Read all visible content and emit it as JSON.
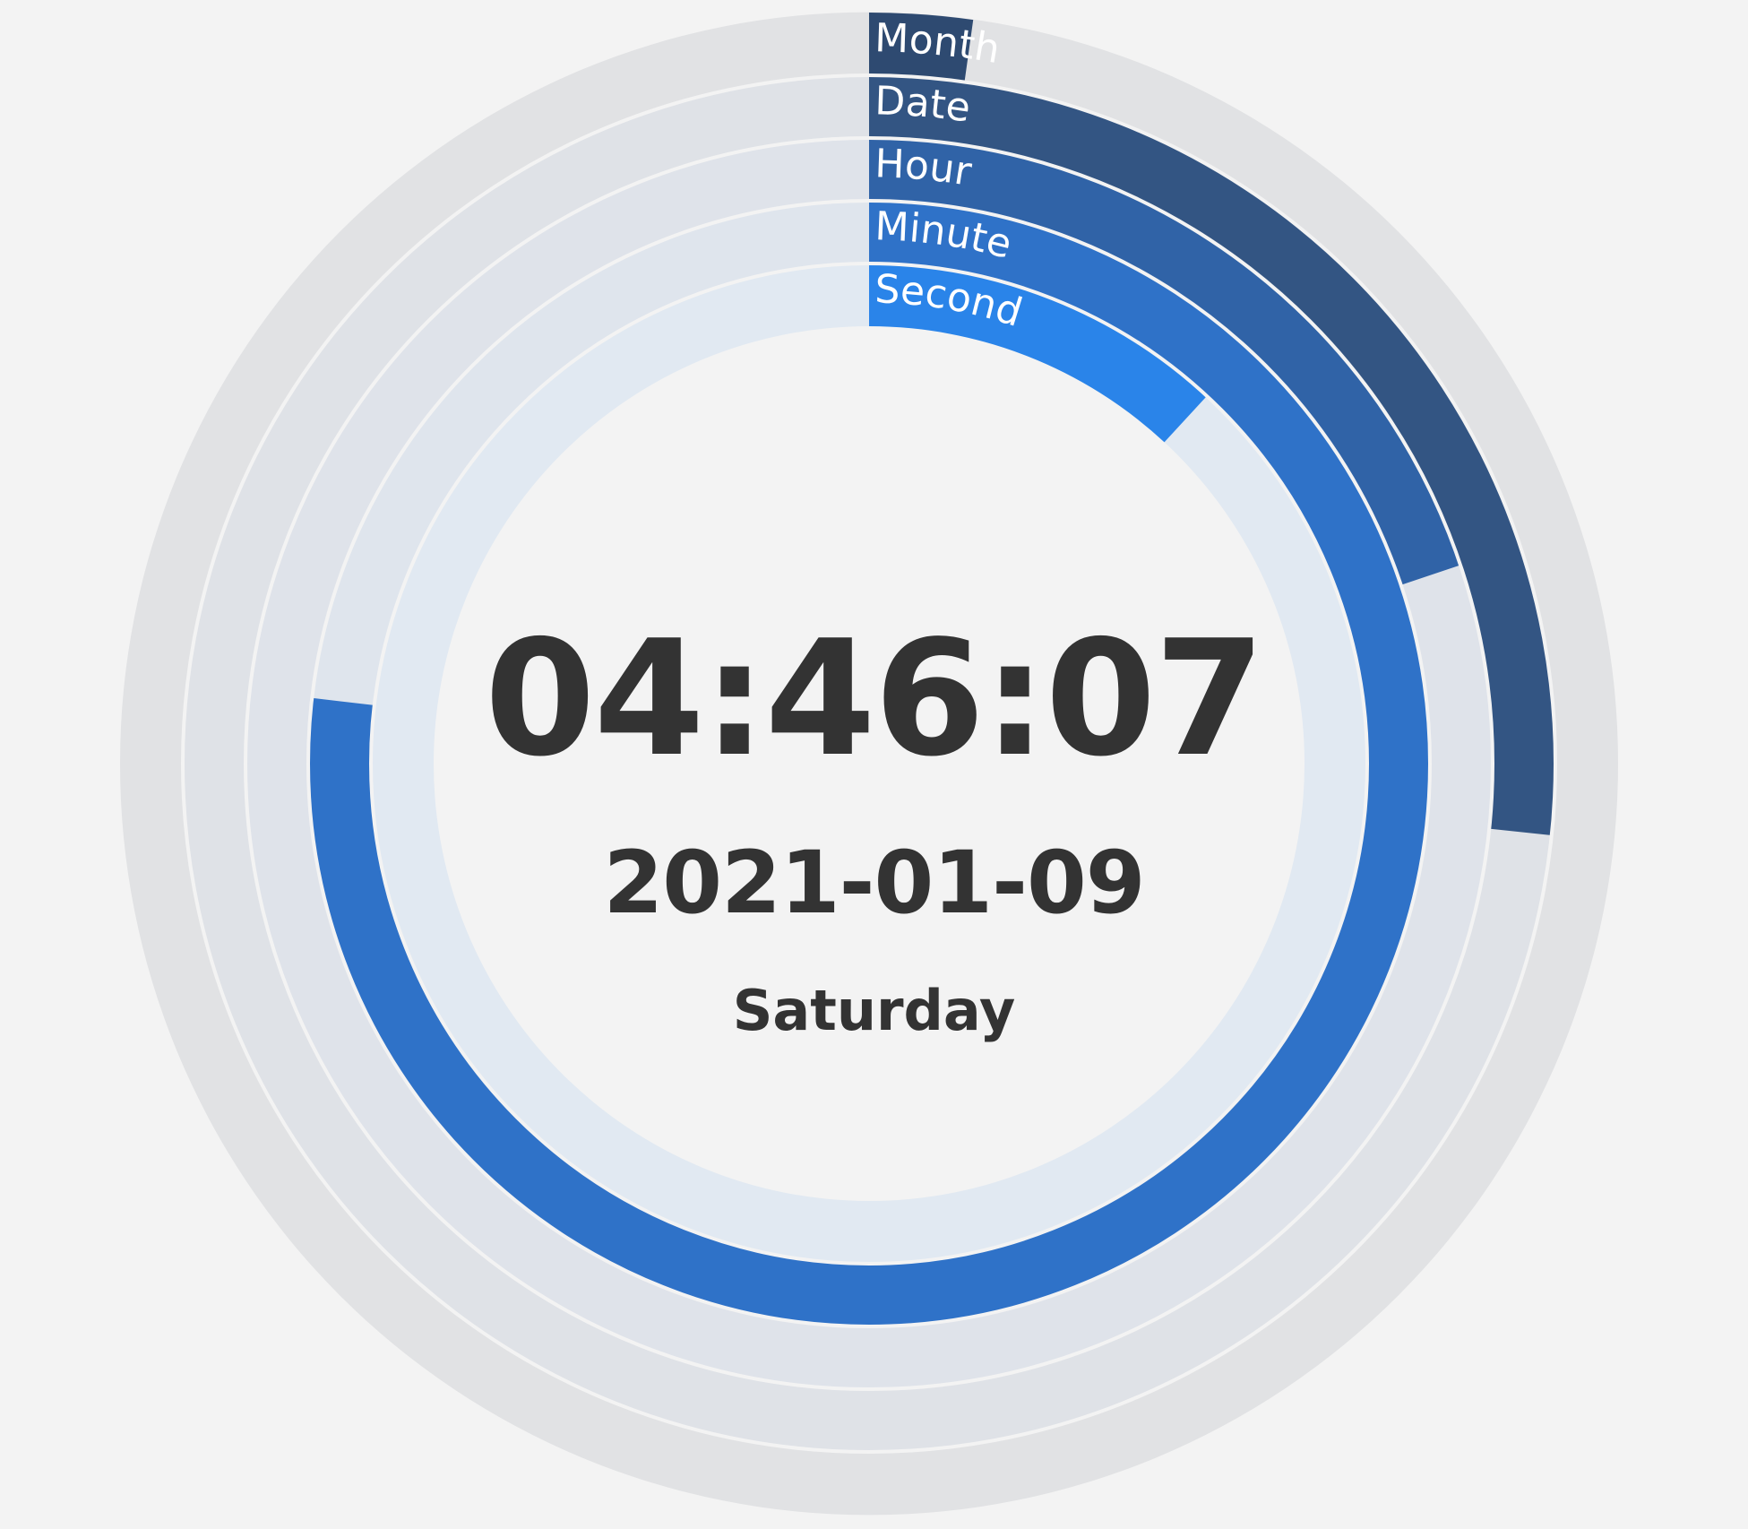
{
  "colors": {
    "background": "#f3f3f3",
    "text": "#333333",
    "label_text": "#ffffff",
    "separator": "#f3f3f3"
  },
  "clock": {
    "time": "04:46:07",
    "date": "2021-01-09",
    "day": "Saturday"
  },
  "chart_data": {
    "type": "radial-bar",
    "rings": [
      {
        "name": "Month",
        "fraction": 0.0222,
        "color": "#2e4a71",
        "track_color": "#e1e2e4"
      },
      {
        "name": "Date",
        "fraction": 0.2666,
        "color": "#335583",
        "track_color": "#dfe2e7"
      },
      {
        "name": "Hour",
        "fraction": 0.1986,
        "color": "#3063a7",
        "track_color": "#dfe3ea"
      },
      {
        "name": "Minute",
        "fraction": 0.7686,
        "color": "#2f72c8",
        "track_color": "#dfe5ed"
      },
      {
        "name": "Second",
        "fraction": 0.1186,
        "color": "#2a84e9",
        "track_color": "#e1e9f2"
      }
    ]
  }
}
